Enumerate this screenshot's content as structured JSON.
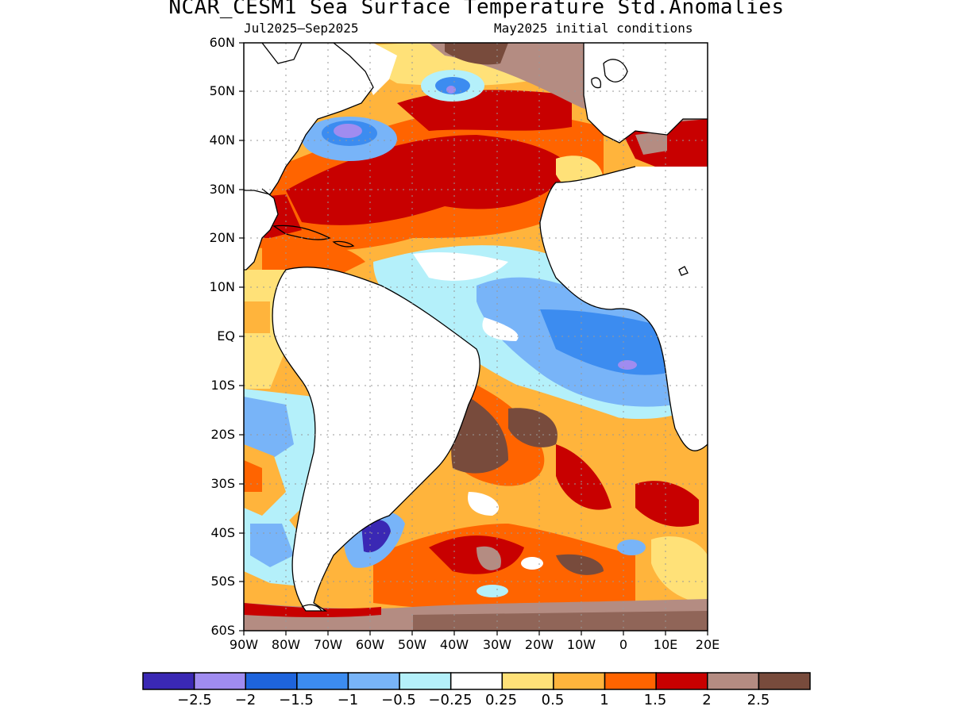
{
  "title": "NCAR_CESM1 Sea Surface Temperature Std.Anomalies",
  "subtitle_left": "Jul2025–Sep2025",
  "subtitle_right": "May2025 initial conditions",
  "lat_labels": [
    "60N",
    "50N",
    "40N",
    "30N",
    "20N",
    "10N",
    "EQ",
    "10S",
    "20S",
    "30S",
    "40S",
    "50S",
    "60S"
  ],
  "lon_labels": [
    "90W",
    "80W",
    "70W",
    "60W",
    "50W",
    "40W",
    "30W",
    "20W",
    "10W",
    "0",
    "10E",
    "20E"
  ],
  "colorbar": {
    "colors": [
      "#3a28b4",
      "#a08cf0",
      "#1e64dc",
      "#3c8cf0",
      "#78b4f8",
      "#b4f0fa",
      "#ffffff",
      "#ffe178",
      "#ffb43c",
      "#ff6400",
      "#c80000",
      "#b48c82",
      "#784b3c"
    ],
    "labels": [
      "−2.5",
      "−2",
      "−1.5",
      "−1",
      "−0.5",
      "−0.25",
      "0.25",
      "0.5",
      "1",
      "1.5",
      "2",
      "2.5"
    ]
  }
}
